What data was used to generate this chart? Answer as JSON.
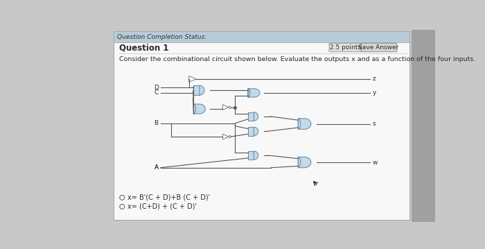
{
  "bg_color": "#c8c8c8",
  "page_bg": "#f5f5f5",
  "white_bg": "#f8f8f8",
  "header_bg": "#b8ccd8",
  "header_text": "Question Completion Status:",
  "header_text_color": "#333333",
  "q_label": "Question 1",
  "q_points": "2.5 points",
  "save_btn": "Save Answer",
  "question_text": "Consider the combinational circuit shown below. Evaluate the outputs x and as a function of the four inputs.",
  "option1": "x= B'(C + D)+B (C + D)'",
  "option2": "x= (C+D) + (C + D)'",
  "gate_color": "#c5dae8",
  "gate_border": "#6a8faa",
  "line_color": "#555555",
  "text_color": "#2a2a2a",
  "right_bar_color": "#b0b0b0"
}
